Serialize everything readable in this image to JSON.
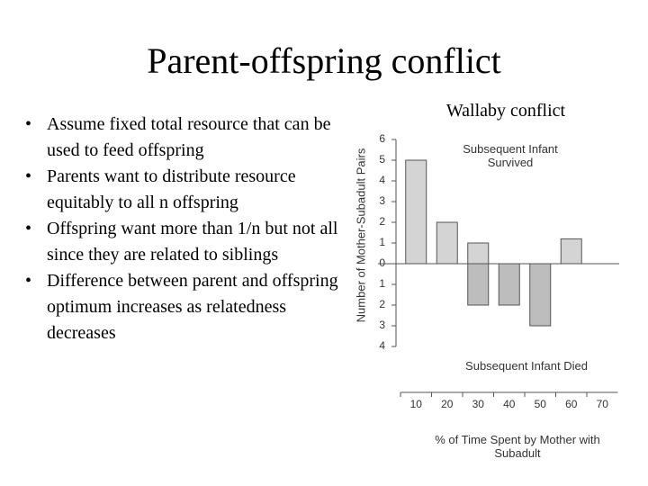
{
  "title": "Parent-offspring conflict",
  "bullets": [
    "Assume fixed total resource that can be used to feed offspring",
    "Parents want to distribute resource equitably to all n offspring",
    "Offspring want more than 1/n but not all since they are related to siblings",
    "Difference between parent and offspring optimum increases as relatedness decreases"
  ],
  "chart_data": {
    "type": "bar",
    "title": "Wallaby conflict",
    "xlabel": "% of Time Spent by Mother with Subadult",
    "ylabel": "Number of Mother-Subadult Pairs",
    "categories": [
      "10",
      "20",
      "30",
      "40",
      "50",
      "60",
      "70"
    ],
    "series": [
      {
        "name": "Subsequent Infant Survived",
        "color": "#d4d4d4",
        "values": [
          5,
          2,
          1,
          null,
          null,
          1.2,
          null
        ]
      },
      {
        "name": "Subsequent Infant Died",
        "color": "#bdbdbd",
        "values": [
          null,
          null,
          -2,
          -2,
          -3,
          null,
          null
        ]
      }
    ],
    "ylim": [
      -4,
      6
    ],
    "yticks": [
      {
        "value": -4,
        "label": "4"
      },
      {
        "value": -3,
        "label": "3"
      },
      {
        "value": -2,
        "label": "2"
      },
      {
        "value": -1,
        "label": "1"
      },
      0,
      1,
      2,
      3,
      4,
      5,
      6
    ]
  }
}
